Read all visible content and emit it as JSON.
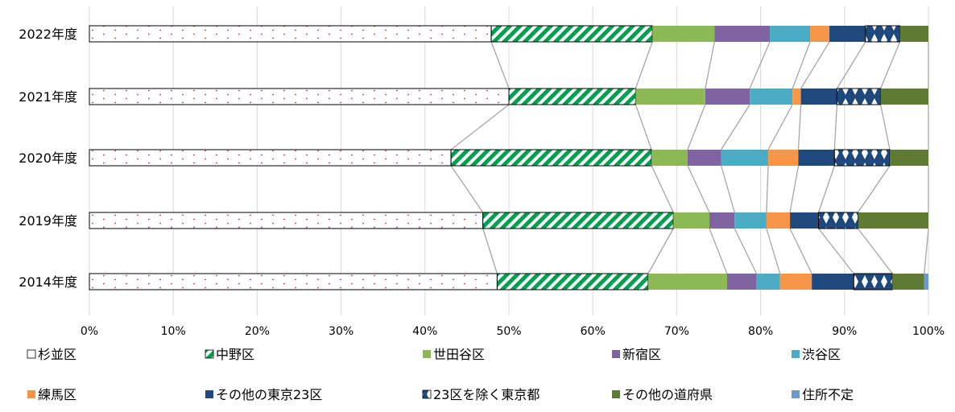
{
  "chart_data": {
    "type": "bar",
    "subtype": "stacked-horizontal-100-percent",
    "categories": [
      "2022年度",
      "2021年度",
      "2020年度",
      "2019年度",
      "2014年度"
    ],
    "series": [
      {
        "name": "杉並区",
        "color": "#ffffff",
        "pattern": "red-dots",
        "values": [
          47.9,
          50.0,
          43.1,
          46.9,
          48.6
        ]
      },
      {
        "name": "中野区",
        "color": "#00a050",
        "pattern": "green-diagonal-stripes",
        "values": [
          19.2,
          15.1,
          23.9,
          22.7,
          18.0
        ]
      },
      {
        "name": "世田谷区",
        "color": "#8db954",
        "values": [
          7.4,
          8.3,
          4.3,
          4.3,
          9.4
        ]
      },
      {
        "name": "新宿区",
        "color": "#8064a2",
        "values": [
          6.6,
          5.3,
          4.0,
          3.0,
          3.5
        ]
      },
      {
        "name": "渋谷区",
        "color": "#4bacc6",
        "values": [
          4.8,
          5.1,
          5.6,
          3.8,
          2.8
        ]
      },
      {
        "name": "練馬区",
        "color": "#f79646",
        "values": [
          2.3,
          1.0,
          3.6,
          2.8,
          3.8
        ]
      },
      {
        "name": "その他の東京23区",
        "color": "#1f497d",
        "values": [
          4.3,
          4.3,
          4.3,
          3.4,
          5.0
        ]
      },
      {
        "name": "23区を除く東京都",
        "color": "#1f497d",
        "pattern": "navy-diamonds",
        "values": [
          4.1,
          5.2,
          6.6,
          4.7,
          4.6
        ]
      },
      {
        "name": "その他の道府県",
        "color": "#5e7a33",
        "values": [
          3.4,
          5.7,
          4.6,
          8.4,
          3.8
        ]
      },
      {
        "name": "住所不定",
        "color": "#6c9ad0",
        "values": [
          0.0,
          0.0,
          0.0,
          0.0,
          0.5
        ]
      }
    ],
    "xlim": [
      0,
      100
    ],
    "x_ticks": [
      "0%",
      "10%",
      "20%",
      "30%",
      "40%",
      "50%",
      "60%",
      "70%",
      "80%",
      "90%",
      "100%"
    ],
    "grid": true,
    "legend_position": "bottom",
    "series_connector_lines": true
  }
}
